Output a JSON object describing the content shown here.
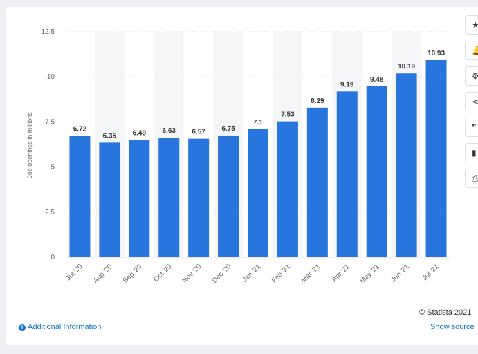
{
  "chart_data": {
    "type": "bar",
    "categories": [
      "Jul '20",
      "Aug '20",
      "Sep '20",
      "Oct '20",
      "Nov '20",
      "Dec '20",
      "Jan '21",
      "Feb '21",
      "Mar '21",
      "Apr '21",
      "May '21",
      "Jun '21",
      "Jul '21"
    ],
    "values": [
      6.72,
      6.35,
      6.49,
      6.63,
      6.57,
      6.75,
      7.1,
      7.53,
      8.29,
      9.19,
      9.48,
      10.19,
      10.93
    ],
    "data_labels": [
      "6.72",
      "6.35",
      "6.49",
      "6.63",
      "6.57",
      "6.75",
      "7.1",
      "7.53",
      "8.29",
      "9.19",
      "9.48",
      "10.19",
      "10.93"
    ],
    "ylabel": "Job openings in millions",
    "xlabel": "",
    "ylim": [
      0,
      12.5
    ],
    "yticks": [
      0,
      2.5,
      5,
      7.5,
      10,
      12.5
    ],
    "ytick_labels": [
      "0",
      "2.5",
      "5",
      "7.5",
      "10",
      "12.5"
    ],
    "grid": true,
    "bar_color": "#2876dd",
    "alt_band_color": "#f5f6f8"
  },
  "footer": {
    "additional_info": "Additional Information",
    "copyright": "© Statista 2021",
    "show_source": "Show source"
  },
  "toolbar": {
    "icons": [
      "star-icon",
      "bell-icon",
      "gear-icon",
      "share-icon",
      "quote-icon",
      "flag-icon",
      "print-icon"
    ]
  }
}
